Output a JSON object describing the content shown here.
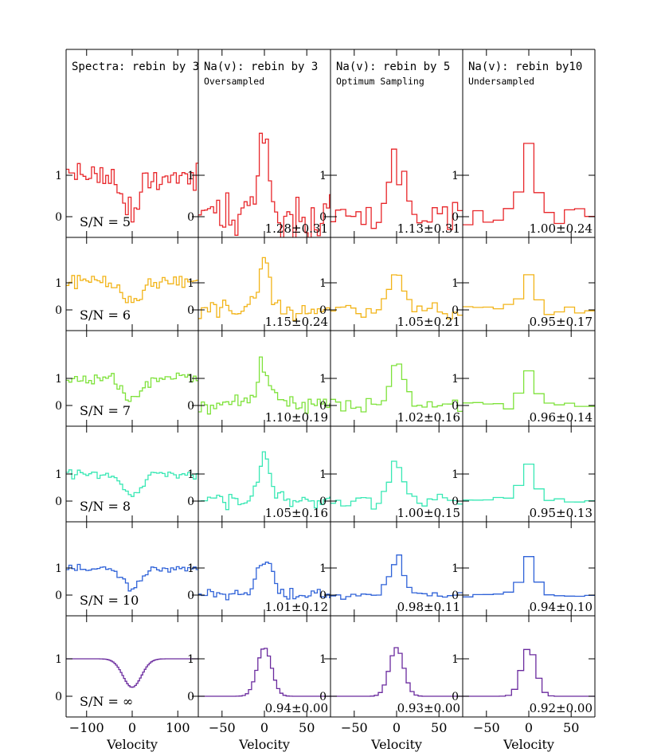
{
  "figure": {
    "xlabel": "Velocity",
    "sn_prefix": "S/N ="
  },
  "columns": [
    {
      "title": "Spectra: rebin by 3",
      "subtitle": "",
      "xticks": [
        -100,
        0,
        100
      ],
      "xlim": [
        -145,
        145
      ],
      "kind": "spectrum"
    },
    {
      "title": "Na(v): rebin by 3",
      "subtitle": "Oversampled",
      "xticks": [
        -50,
        0,
        50
      ],
      "xlim": [
        -78,
        78
      ],
      "kind": "na",
      "bin": 3
    },
    {
      "title": "Na(v): rebin by 5",
      "subtitle": "Optimum Sampling",
      "xticks": [
        -50,
        0,
        50
      ],
      "xlim": [
        -78,
        78
      ],
      "kind": "na",
      "bin": 5
    },
    {
      "title": "Na(v): rebin by10",
      "subtitle": "Undersampled",
      "xticks": [
        -50,
        0,
        50
      ],
      "xlim": [
        -78,
        78
      ],
      "kind": "na",
      "bin": 10
    }
  ],
  "rows": [
    {
      "sn": "5",
      "color": "#e8262a",
      "noise": 0.33,
      "seed": 11,
      "values": [
        "1.28±0.31",
        "1.13±0.31",
        "1.00±0.24"
      ]
    },
    {
      "sn": "6",
      "color": "#f2b418",
      "noise": 0.26,
      "seed": 23,
      "values": [
        "1.15±0.24",
        "1.05±0.21",
        "0.95±0.17"
      ]
    },
    {
      "sn": "7",
      "color": "#7ee23a",
      "noise": 0.2,
      "seed": 37,
      "values": [
        "1.10±0.19",
        "1.02±0.16",
        "0.96±0.14"
      ]
    },
    {
      "sn": "8",
      "color": "#38e8b4",
      "noise": 0.17,
      "seed": 41,
      "values": [
        "1.05±0.16",
        "1.00±0.15",
        "0.95±0.13"
      ]
    },
    {
      "sn": "10",
      "color": "#2f62d8",
      "noise": 0.13,
      "seed": 53,
      "values": [
        "1.01±0.12",
        "0.98±0.11",
        "0.94±0.10"
      ]
    },
    {
      "sn": "∞",
      "color": "#6a2a9e",
      "noise": 0,
      "seed": 0,
      "values": [
        "0.94±0.00",
        "0.93±0.00",
        "0.92±0.00"
      ]
    }
  ],
  "chart_data": {
    "type": "line",
    "description_source": "grid of step-plot panels",
    "xlabel": "Velocity",
    "column_titles": [
      "Spectra: rebin by 3",
      "Na(v): rebin by 3",
      "Na(v): rebin by 5",
      "Na(v): rebin by10"
    ],
    "column_subtitles": [
      "",
      "Oversampled",
      "Optimum Sampling",
      "Undersampled"
    ],
    "row_labels": [
      "S/N = 5",
      "S/N = 6",
      "S/N = 7",
      "S/N = 8",
      "S/N = 10",
      "S/N = ∞"
    ],
    "y_ticks": [
      0,
      1
    ],
    "x_ticks_spectra": [
      -100,
      0,
      100
    ],
    "x_ticks_na": [
      -50,
      0,
      50
    ],
    "measurements": [
      [
        "1.28±0.31",
        "1.13±0.31",
        "1.00±0.24"
      ],
      [
        "1.15±0.24",
        "1.05±0.21",
        "0.95±0.17"
      ],
      [
        "1.10±0.19",
        "1.02±0.16",
        "0.96±0.14"
      ],
      [
        "1.05±0.16",
        "1.00±0.15",
        "0.95±0.13"
      ],
      [
        "1.01±0.12",
        "0.98±0.11",
        "0.94±0.10"
      ],
      [
        "0.94±0.00",
        "0.93±0.00",
        "0.92±0.00"
      ]
    ]
  }
}
